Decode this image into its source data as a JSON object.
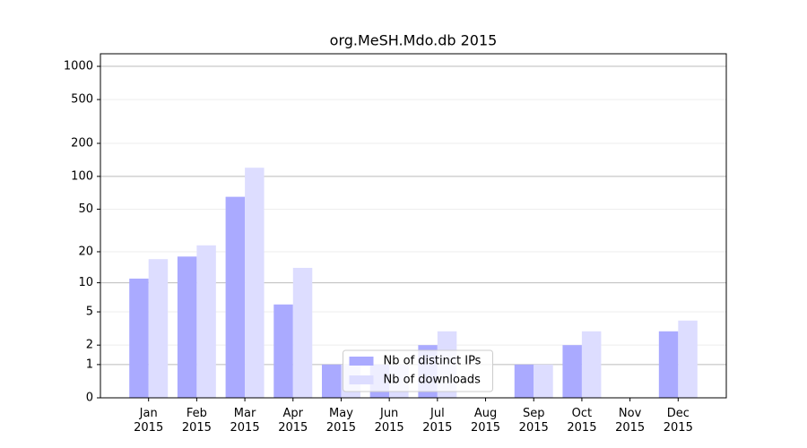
{
  "chart_data": {
    "type": "bar",
    "title": "org.MeSH.Mdo.db 2015",
    "categories": [
      "Jan 2015",
      "Feb 2015",
      "Mar 2015",
      "Apr 2015",
      "May 2015",
      "Jun 2015",
      "Jul 2015",
      "Aug 2015",
      "Sep 2015",
      "Oct 2015",
      "Nov 2015",
      "Dec 2015"
    ],
    "series": [
      {
        "name": "Nb of distinct IPs",
        "color": "#aaaaff",
        "values": [
          11,
          18,
          65,
          6,
          1,
          1,
          2,
          0,
          1,
          2,
          0,
          3
        ]
      },
      {
        "name": "Nb of downloads",
        "color": "#ddddff",
        "values": [
          17,
          23,
          120,
          14,
          1,
          1,
          3,
          0,
          1,
          3,
          0,
          4
        ]
      }
    ],
    "y_scale": "log1p",
    "ylim": [
      0,
      1300
    ],
    "yticks": [
      0,
      1,
      2,
      5,
      10,
      20,
      50,
      100,
      200,
      500,
      1000
    ],
    "grid": true,
    "legend": "lower center"
  }
}
